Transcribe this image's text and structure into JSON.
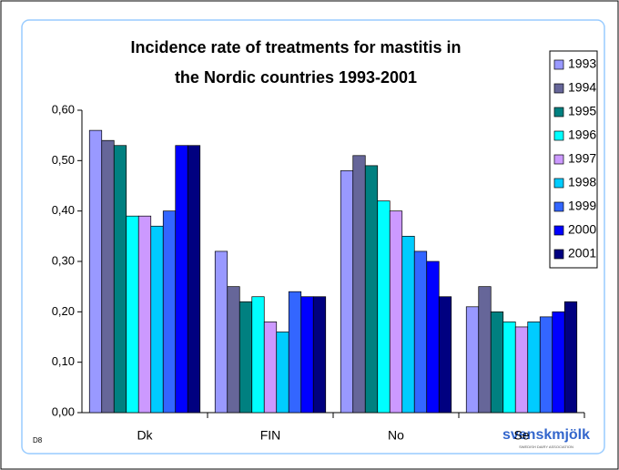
{
  "chart_data": {
    "type": "bar",
    "title": [
      "Incidence rate of treatments for mastitis in",
      "the Nordic countries 1993-2001"
    ],
    "categories": [
      "Dk",
      "FIN",
      "No",
      "Se"
    ],
    "series": [
      {
        "name": "1993",
        "color": "#9999ff",
        "values": [
          0.56,
          0.32,
          0.48,
          0.21
        ]
      },
      {
        "name": "1994",
        "color": "#666699",
        "values": [
          0.54,
          0.25,
          0.51,
          0.25
        ]
      },
      {
        "name": "1995",
        "color": "#008080",
        "values": [
          0.53,
          0.22,
          0.49,
          0.2
        ]
      },
      {
        "name": "1996",
        "color": "#00ffff",
        "values": [
          0.39,
          0.23,
          0.42,
          0.18
        ]
      },
      {
        "name": "1997",
        "color": "#cc99ff",
        "values": [
          0.39,
          0.18,
          0.4,
          0.17
        ]
      },
      {
        "name": "1998",
        "color": "#00ccff",
        "values": [
          0.37,
          0.16,
          0.35,
          0.18
        ]
      },
      {
        "name": "1999",
        "color": "#3366ff",
        "values": [
          0.4,
          0.24,
          0.32,
          0.19
        ]
      },
      {
        "name": "2000",
        "color": "#0000ff",
        "values": [
          0.53,
          0.23,
          0.3,
          0.2
        ]
      },
      {
        "name": "2001",
        "color": "#000080",
        "values": [
          0.53,
          0.23,
          0.23,
          0.22
        ]
      }
    ],
    "ylim": [
      0,
      0.6
    ],
    "yticks": [
      {
        "value": 0,
        "label": "0,00"
      },
      {
        "value": 0.1,
        "label": "0,10"
      },
      {
        "value": 0.2,
        "label": "0,20"
      },
      {
        "value": 0.3,
        "label": "0,30"
      },
      {
        "value": 0.4,
        "label": "0,40"
      },
      {
        "value": 0.5,
        "label": "0,50"
      },
      {
        "value": 0.6,
        "label": "0,60"
      }
    ],
    "legend": "right",
    "slide_label": "D8",
    "logo": {
      "text": "svenskmjölk",
      "subtitle": "SWEDISH DAIRY ASSOCIATION"
    }
  }
}
